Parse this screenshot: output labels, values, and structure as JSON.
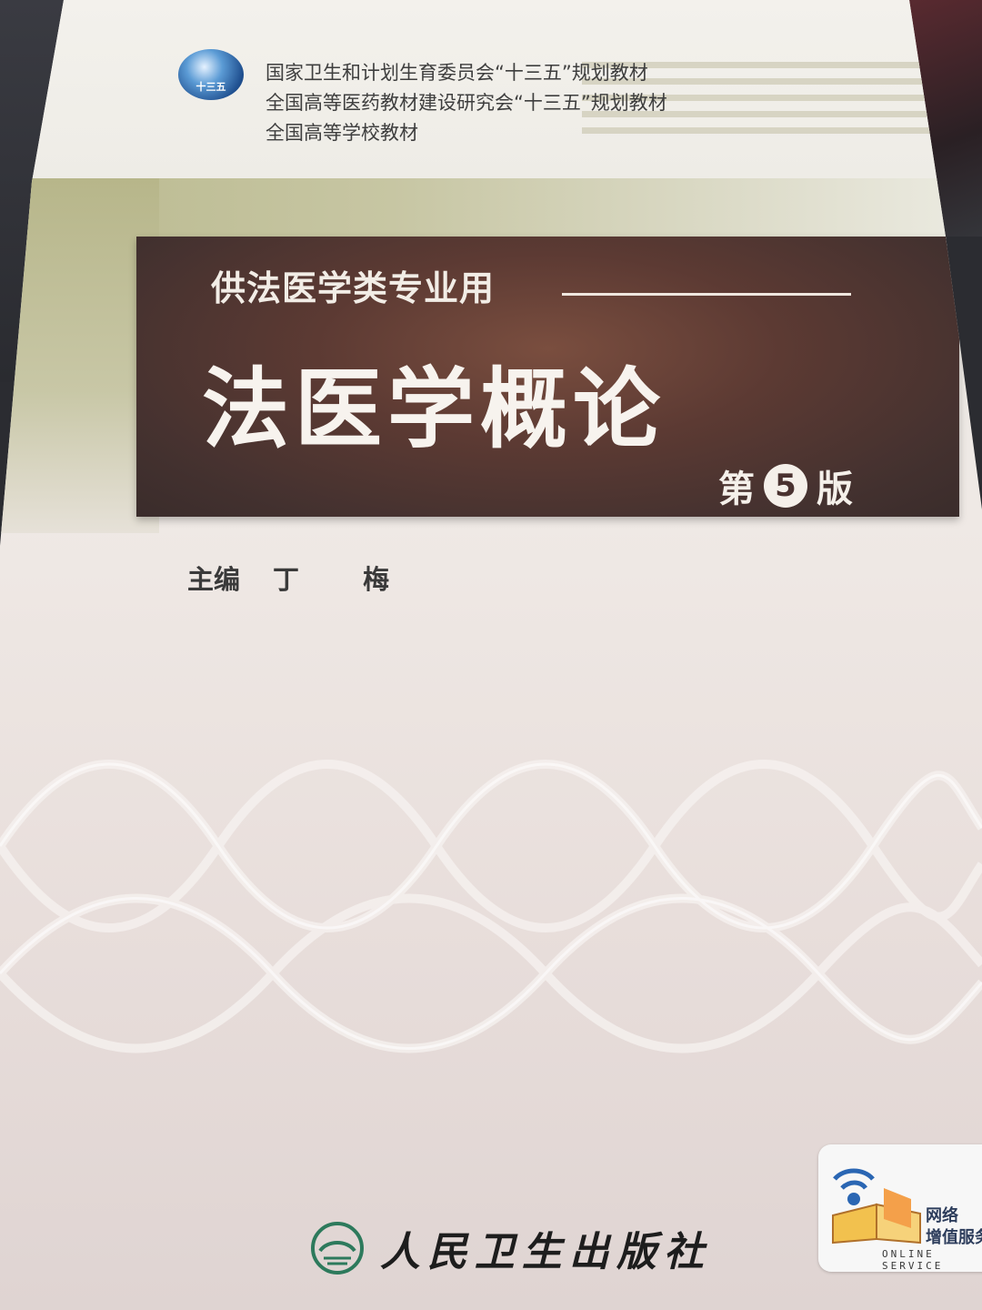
{
  "book": {
    "series": [
      "国家卫生和计划生育委员会“十三五”规划教材",
      "全国高等医药教材建设研究会“十三五”规划教材",
      "全国高等学校教材"
    ],
    "logo_text": "十三五",
    "audience": "供法医学类专业用",
    "title": "法医学概论",
    "edition_prefix": "第",
    "edition_number": "5",
    "edition_suffix": "版",
    "editor_label": "主编",
    "editor_name": "丁 梅",
    "publisher": "人民卫生出版社",
    "online_badge": {
      "line1": "网络",
      "line2": "增值服务",
      "line3": "ONLINE SERVICE"
    }
  },
  "colors": {
    "panel": "#5c3a33",
    "olive": "#b9b98e",
    "paper": "#eceae4"
  }
}
